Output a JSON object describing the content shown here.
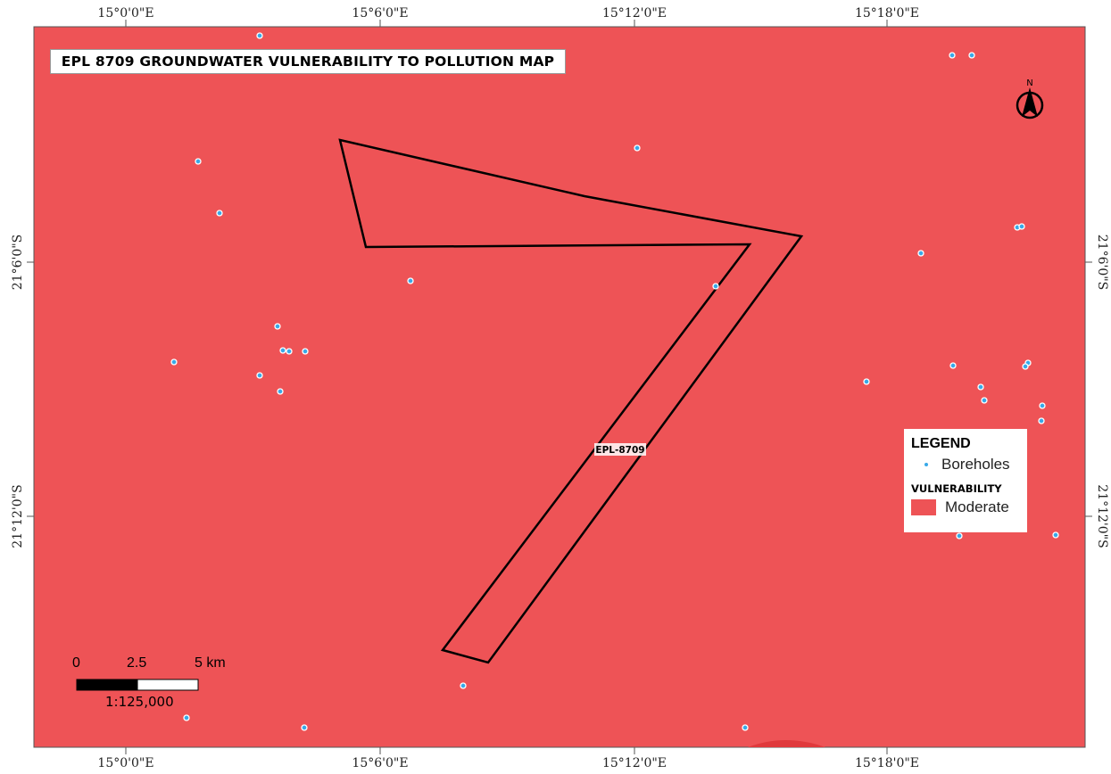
{
  "title": "EPL 8709 GROUNDWATER VULNERABILITY TO POLLUTION MAP",
  "colors": {
    "vulnerability_moderate": "#ee5356",
    "borehole": "#38a9e8",
    "boundary": "#000000"
  },
  "grid_labels": {
    "lon": [
      "15°0'0\"E",
      "15°6'0\"E",
      "15°12'0\"E",
      "15°18'0\"E"
    ],
    "lat": [
      "21°6'0\"S",
      "21°12'0\"S"
    ]
  },
  "epl_label": "EPL-8709",
  "north_arrow": {
    "label": "N",
    "icon": "north-arrow-icon"
  },
  "legend": {
    "title": "LEGEND",
    "boreholes_label": "Boreholes",
    "vulnerability_title": "VULNERABILITY",
    "moderate_label": "Moderate"
  },
  "scale_bar": {
    "labels": [
      "0",
      "2.5",
      "5 km"
    ],
    "ratio": "1:125,000"
  }
}
